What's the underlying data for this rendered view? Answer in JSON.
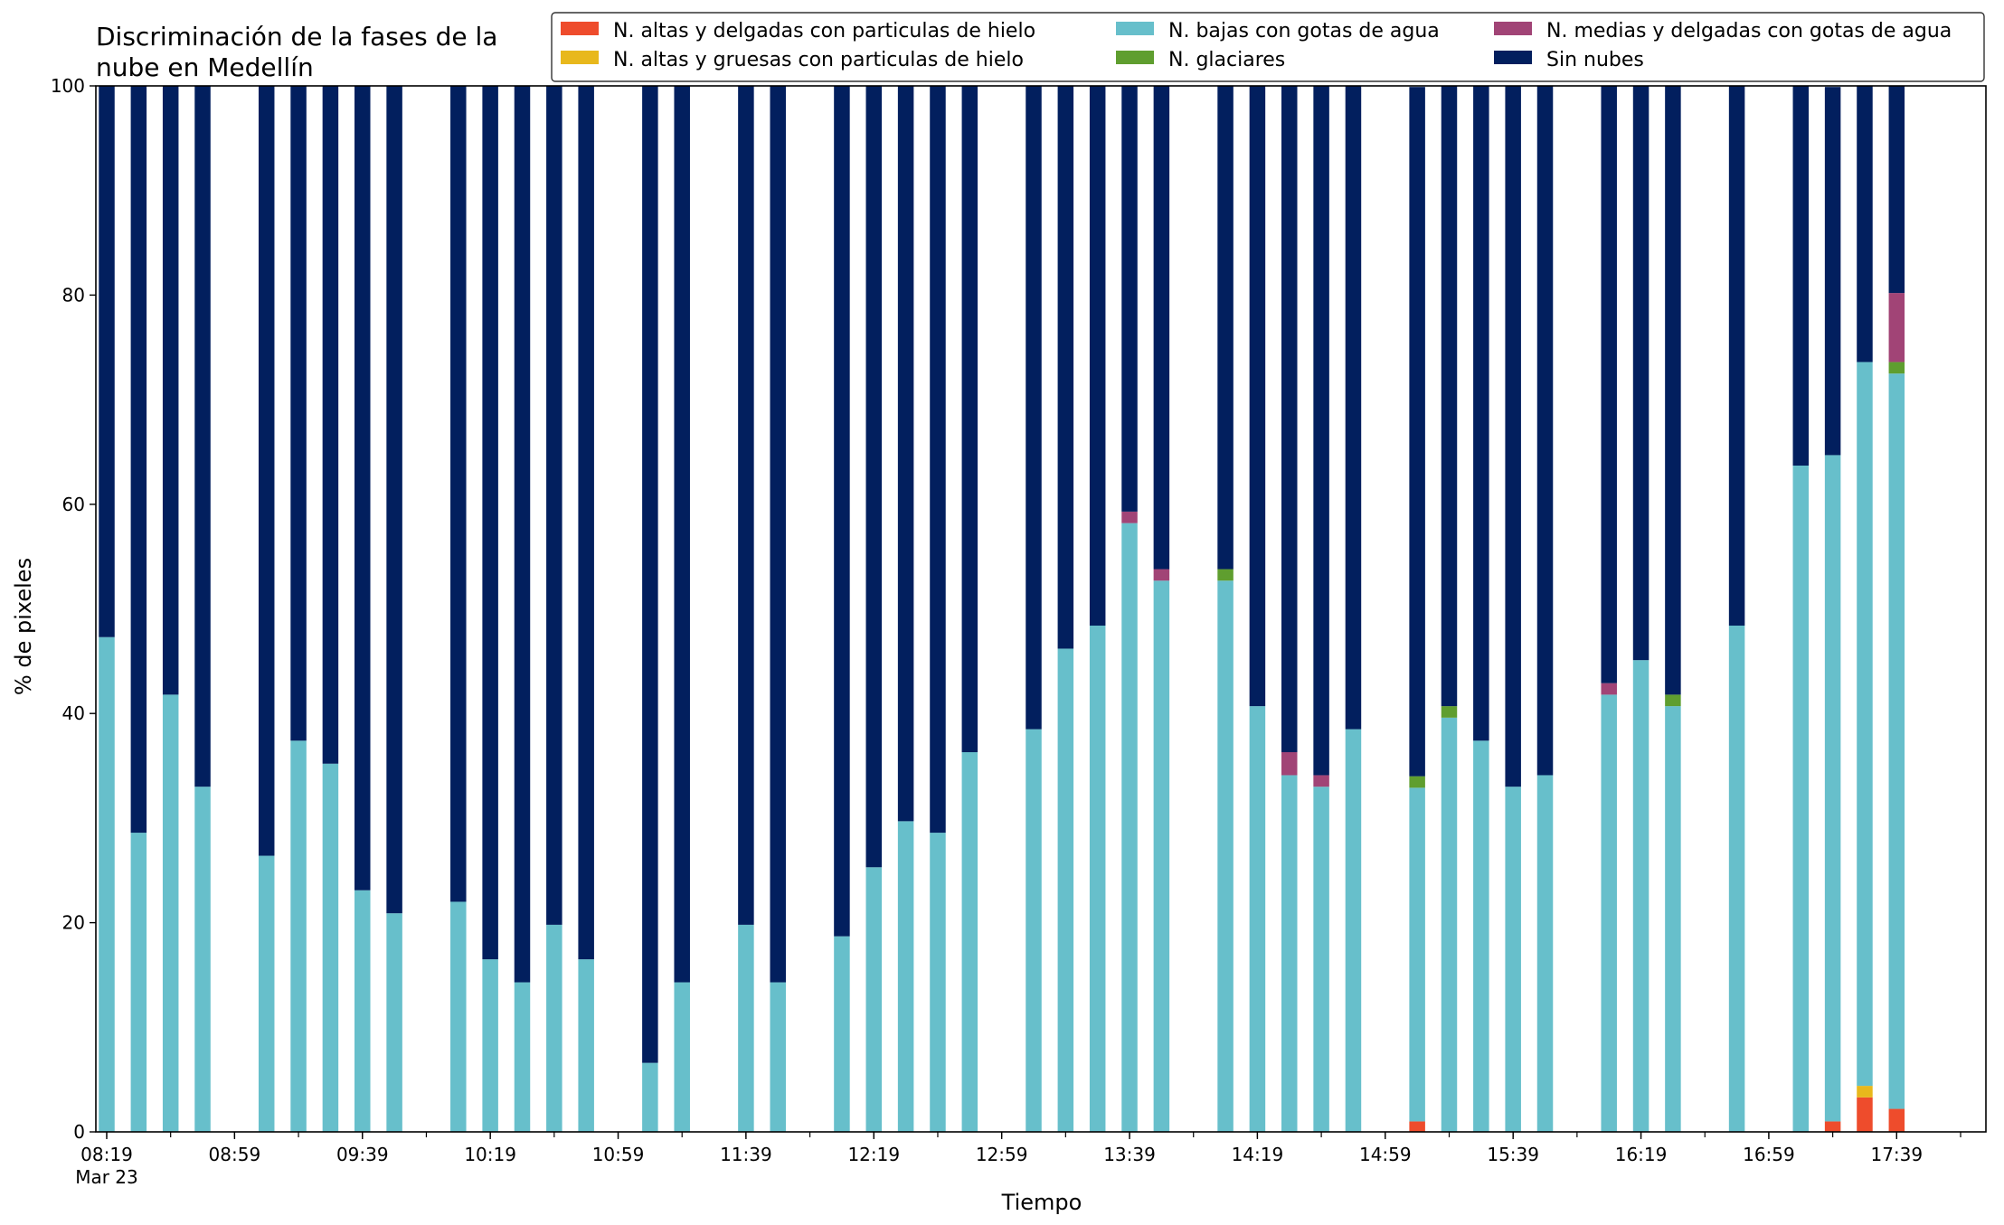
{
  "chart_data": {
    "type": "bar",
    "stacked": true,
    "title": [
      "Discriminación de la fases de la",
      "nube en Medellín"
    ],
    "xlabel": "Tiempo",
    "ylabel": "% de pixeles",
    "ylim": [
      0,
      100
    ],
    "yticks": [
      0,
      20,
      40,
      60,
      80,
      100
    ],
    "x_start": "2024-03-23 08:19",
    "x_end": "2024-03-23 17:59",
    "xtick_labels": [
      "08:19",
      "08:59",
      "09:39",
      "10:19",
      "10:59",
      "11:39",
      "12:19",
      "12:59",
      "13:39",
      "14:19",
      "14:59",
      "15:39",
      "16:19",
      "16:59",
      "17:39"
    ],
    "xtick_sublabel": "Mar 23",
    "grid": false,
    "legend_position": "top-right",
    "categories": [
      "08:19",
      "08:29",
      "08:39",
      "08:49",
      "09:09",
      "09:19",
      "09:29",
      "09:39",
      "09:49",
      "10:09",
      "10:19",
      "10:29",
      "10:39",
      "10:49",
      "11:09",
      "11:19",
      "11:39",
      "11:49",
      "12:09",
      "12:19",
      "12:29",
      "12:39",
      "12:49",
      "13:09",
      "13:19",
      "13:29",
      "13:39",
      "13:49",
      "14:09",
      "14:19",
      "14:29",
      "14:39",
      "14:49",
      "15:09",
      "15:19",
      "15:29",
      "15:39",
      "15:49",
      "16:09",
      "16:19",
      "16:29",
      "16:49",
      "17:09",
      "17:19",
      "17:29",
      "17:39"
    ],
    "series": [
      {
        "name": "N. altas y delgadas con particulas de hielo",
        "color": "#ee4c2c",
        "values": [
          0,
          0,
          0,
          0,
          0,
          0,
          0,
          0,
          0,
          0,
          0,
          0,
          0,
          0,
          0,
          0,
          0,
          0,
          0,
          0,
          0,
          0,
          0,
          0,
          0,
          0,
          0,
          0,
          0,
          0,
          0,
          0,
          0,
          1.0,
          0,
          0,
          0,
          0,
          0,
          0,
          0,
          0,
          0,
          1.0,
          3.3,
          2.2
        ]
      },
      {
        "name": "N. altas y gruesas con particulas de hielo",
        "color": "#e8b81c",
        "values": [
          0,
          0,
          0,
          0,
          0,
          0,
          0,
          0,
          0,
          0,
          0,
          0,
          0,
          0,
          0,
          0,
          0,
          0,
          0,
          0,
          0,
          0,
          0,
          0,
          0,
          0,
          0,
          0,
          0,
          0,
          0,
          0,
          0,
          0,
          0,
          0,
          0,
          0,
          0,
          0,
          0,
          0,
          0,
          0,
          1.1,
          0
        ]
      },
      {
        "name": "N. bajas con gotas de agua",
        "color": "#67bfcb",
        "values": [
          47.3,
          28.6,
          41.8,
          33.0,
          26.4,
          37.4,
          35.2,
          23.1,
          20.9,
          22.0,
          16.5,
          14.3,
          19.8,
          16.5,
          6.6,
          14.3,
          19.8,
          14.3,
          18.7,
          25.3,
          29.7,
          28.6,
          36.3,
          38.5,
          46.2,
          48.4,
          58.2,
          52.7,
          52.7,
          40.7,
          34.1,
          33.0,
          38.5,
          31.9,
          39.6,
          37.4,
          33.0,
          34.1,
          41.8,
          45.1,
          40.7,
          48.4,
          63.7,
          63.7,
          69.2,
          70.3
        ]
      },
      {
        "name": "N. glaciares",
        "color": "#5f9e2f",
        "values": [
          0,
          0,
          0,
          0,
          0,
          0,
          0,
          0,
          0,
          0,
          0,
          0,
          0,
          0,
          0,
          0,
          0,
          0,
          0,
          0,
          0,
          0,
          0,
          0,
          0,
          0,
          0,
          0,
          1.1,
          0,
          0,
          0,
          0,
          1.1,
          1.1,
          0,
          0,
          0,
          0,
          0,
          1.1,
          0,
          0,
          0,
          0,
          1.1
        ]
      },
      {
        "name": "N. medias y delgadas con gotas de agua",
        "color": "#a14476",
        "values": [
          0,
          0,
          0,
          0,
          0,
          0,
          0,
          0,
          0,
          0,
          0,
          0,
          0,
          0,
          0,
          0,
          0,
          0,
          0,
          0,
          0,
          0,
          0,
          0,
          0,
          0,
          1.1,
          1.1,
          0,
          0,
          2.2,
          1.1,
          0,
          0,
          0,
          0,
          0,
          0,
          1.1,
          0,
          0,
          0,
          0,
          0,
          0,
          6.6
        ]
      },
      {
        "name": "Sin nubes",
        "color": "#021f5e",
        "values": [
          52.7,
          71.4,
          58.2,
          67.0,
          73.6,
          62.6,
          64.8,
          76.9,
          79.1,
          78.0,
          83.5,
          85.7,
          80.2,
          83.5,
          93.4,
          85.7,
          80.2,
          85.7,
          81.3,
          74.7,
          70.3,
          71.4,
          63.7,
          61.5,
          53.8,
          51.6,
          40.7,
          46.2,
          46.2,
          59.3,
          63.7,
          65.9,
          61.5,
          65.9,
          59.3,
          62.6,
          67.0,
          65.9,
          57.1,
          54.9,
          58.2,
          51.6,
          36.3,
          35.2,
          26.4,
          19.8
        ]
      }
    ]
  }
}
